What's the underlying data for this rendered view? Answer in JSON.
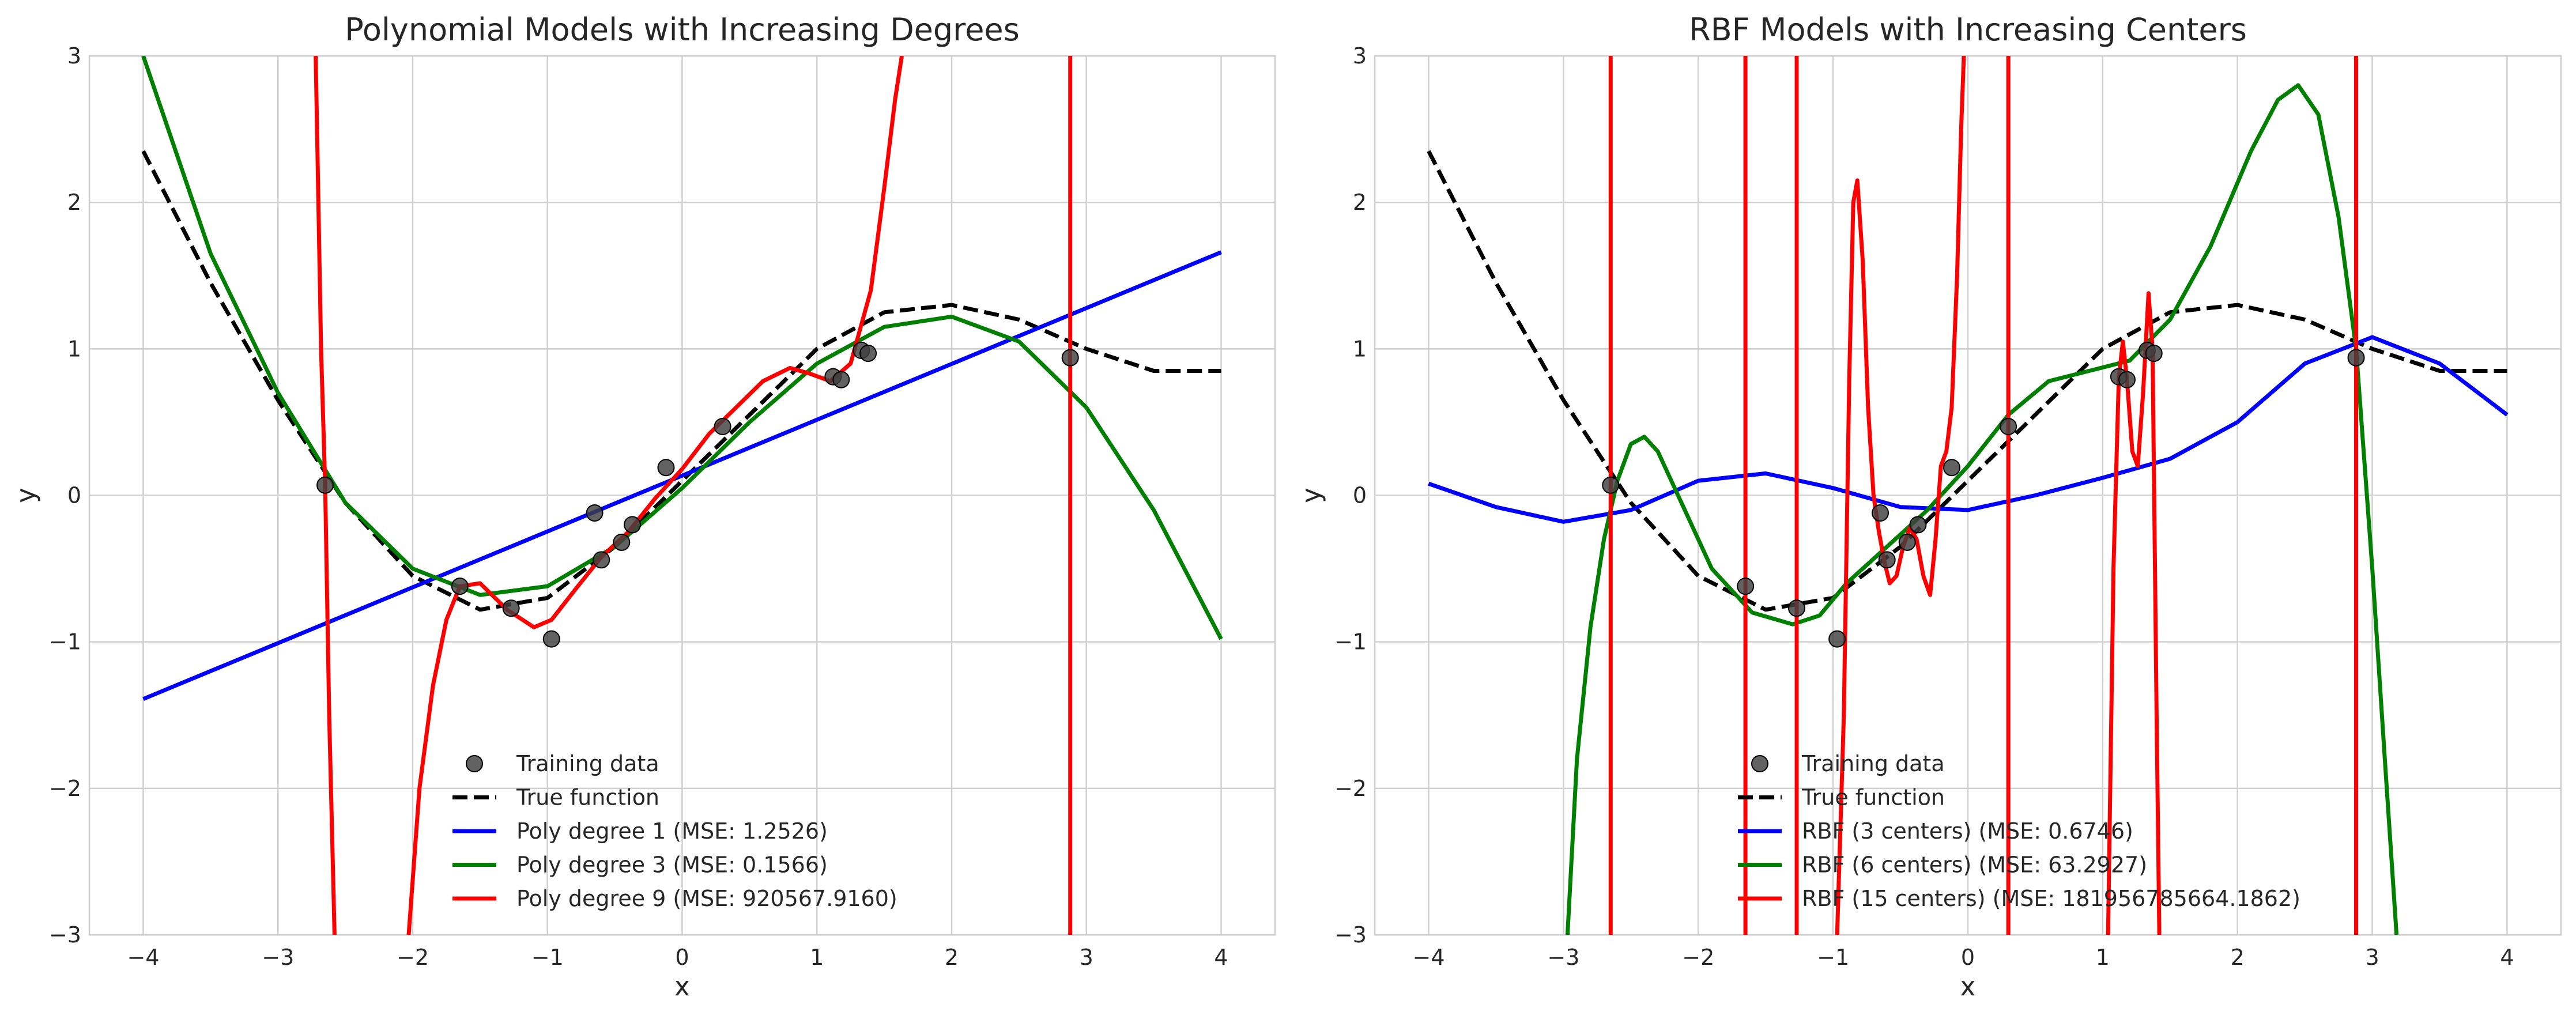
{
  "chart_data": [
    {
      "type": "line",
      "title": "Polynomial Models with Increasing Degrees",
      "xlabel": "x",
      "ylabel": "y",
      "xlim": [
        -4.4,
        4.4
      ],
      "ylim": [
        -3,
        3
      ],
      "xticks": [
        -4,
        -3,
        -2,
        -1,
        0,
        1,
        2,
        3,
        4
      ],
      "yticks": [
        -3,
        -2,
        -1,
        0,
        1,
        2,
        3
      ],
      "grid": true,
      "legend_position": "lower center",
      "training_data": {
        "name": "Training data",
        "color": "#404040",
        "x": [
          -2.65,
          -1.65,
          -1.27,
          -0.97,
          -0.65,
          -0.6,
          -0.45,
          -0.37,
          -0.12,
          0.3,
          1.12,
          1.18,
          1.33,
          1.38,
          2.88
        ],
        "y": [
          0.07,
          -0.62,
          -0.77,
          -0.98,
          -0.12,
          -0.44,
          -0.32,
          -0.2,
          0.19,
          0.47,
          0.81,
          0.79,
          0.99,
          0.97,
          0.94
        ]
      },
      "true_function": {
        "name": "True function",
        "color": "#000000",
        "style": "dashed",
        "x": [
          -4,
          -3.5,
          -3,
          -2.5,
          -2,
          -1.5,
          -1,
          -0.5,
          0,
          0.5,
          1,
          1.5,
          2,
          2.5,
          3,
          3.5,
          4
        ],
        "y": [
          2.35,
          1.45,
          0.65,
          -0.05,
          -0.55,
          -0.78,
          -0.7,
          -0.35,
          0.1,
          0.55,
          1.0,
          1.25,
          1.3,
          1.2,
          1.0,
          0.85,
          0.85
        ]
      },
      "series": [
        {
          "name": "Poly degree 1 (MSE: 1.2526)",
          "color": "#0000ff",
          "x": [
            -4,
            4
          ],
          "y": [
            -1.39,
            1.66
          ]
        },
        {
          "name": "Poly degree 3 (MSE: 0.1566)",
          "color": "#008000",
          "x": [
            -4,
            -3.5,
            -3,
            -2.5,
            -2,
            -1.5,
            -1,
            -0.5,
            0,
            0.5,
            1,
            1.5,
            2,
            2.5,
            3,
            3.5,
            4
          ],
          "y": [
            3.0,
            1.65,
            0.7,
            -0.05,
            -0.5,
            -0.68,
            -0.62,
            -0.35,
            0.05,
            0.5,
            0.9,
            1.15,
            1.22,
            1.05,
            0.6,
            -0.1,
            -0.98
          ]
        },
        {
          "name": "Poly degree 9 (MSE: 920567.9160)",
          "color": "#ff0000",
          "segments": [
            {
              "x": [
                -2.72,
                -2.68,
                -2.65,
                -2.62,
                -2.58
              ],
              "y": [
                3.0,
                1.0,
                0.07,
                -1.5,
                -3.0
              ]
            },
            {
              "x": [
                -2.03,
                -1.95,
                -1.85,
                -1.75,
                -1.65,
                -1.5,
                -1.3,
                -1.1,
                -0.97,
                -0.8,
                -0.6,
                -0.4,
                -0.2,
                0,
                0.2,
                0.4,
                0.6,
                0.8,
                0.95,
                1.1,
                1.25,
                1.4,
                1.5,
                1.58,
                1.63
              ],
              "y": [
                -3.0,
                -2.0,
                -1.3,
                -0.85,
                -0.62,
                -0.6,
                -0.78,
                -0.9,
                -0.85,
                -0.65,
                -0.42,
                -0.25,
                -0.02,
                0.18,
                0.42,
                0.6,
                0.78,
                0.87,
                0.83,
                0.78,
                0.9,
                1.4,
                2.1,
                2.7,
                3.0
              ]
            },
            {
              "x": [
                2.88,
                2.88
              ],
              "y": [
                3.0,
                -3.0
              ]
            }
          ]
        }
      ]
    },
    {
      "type": "line",
      "title": "RBF Models with Increasing Centers",
      "xlabel": "x",
      "ylabel": "y",
      "xlim": [
        -4.4,
        4.4
      ],
      "ylim": [
        -3,
        3
      ],
      "xticks": [
        -4,
        -3,
        -2,
        -1,
        0,
        1,
        2,
        3,
        4
      ],
      "yticks": [
        -3,
        -2,
        -1,
        0,
        1,
        2,
        3
      ],
      "grid": true,
      "legend_position": "lower center",
      "training_data": {
        "name": "Training data",
        "color": "#404040",
        "x": [
          -2.65,
          -1.65,
          -1.27,
          -0.97,
          -0.65,
          -0.6,
          -0.45,
          -0.37,
          -0.12,
          0.3,
          1.12,
          1.18,
          1.33,
          1.38,
          2.88
        ],
        "y": [
          0.07,
          -0.62,
          -0.77,
          -0.98,
          -0.12,
          -0.44,
          -0.32,
          -0.2,
          0.19,
          0.47,
          0.81,
          0.79,
          0.99,
          0.97,
          0.94
        ]
      },
      "true_function": {
        "name": "True function",
        "color": "#000000",
        "style": "dashed",
        "x": [
          -4,
          -3.5,
          -3,
          -2.5,
          -2,
          -1.5,
          -1,
          -0.5,
          0,
          0.5,
          1,
          1.5,
          2,
          2.5,
          3,
          3.5,
          4
        ],
        "y": [
          2.35,
          1.45,
          0.65,
          -0.05,
          -0.55,
          -0.78,
          -0.7,
          -0.35,
          0.1,
          0.55,
          1.0,
          1.25,
          1.3,
          1.2,
          1.0,
          0.85,
          0.85
        ]
      },
      "series": [
        {
          "name": "RBF (3 centers) (MSE: 0.6746)",
          "color": "#0000ff",
          "x": [
            -4,
            -3.5,
            -3,
            -2.5,
            -2,
            -1.5,
            -1,
            -0.5,
            0,
            0.5,
            1,
            1.5,
            2,
            2.5,
            3,
            3.5,
            4
          ],
          "y": [
            0.08,
            -0.08,
            -0.18,
            -0.1,
            0.1,
            0.15,
            0.05,
            -0.08,
            -0.1,
            0.0,
            0.12,
            0.25,
            0.5,
            0.9,
            1.08,
            0.9,
            0.55
          ]
        },
        {
          "name": "RBF (6 centers) (MSE: 63.2927)",
          "color": "#008000",
          "x": [
            -2.97,
            -2.9,
            -2.8,
            -2.7,
            -2.6,
            -2.5,
            -2.4,
            -2.3,
            -2.1,
            -1.9,
            -1.6,
            -1.3,
            -1.1,
            -0.9,
            -0.6,
            -0.3,
            0,
            0.3,
            0.6,
            0.9,
            1.2,
            1.5,
            1.8,
            2.1,
            2.3,
            2.45,
            2.6,
            2.75,
            2.88,
            3.0,
            3.1,
            3.18
          ],
          "y": [
            -3.0,
            -1.8,
            -0.9,
            -0.3,
            0.1,
            0.35,
            0.4,
            0.3,
            -0.1,
            -0.5,
            -0.8,
            -0.88,
            -0.82,
            -0.6,
            -0.35,
            -0.1,
            0.2,
            0.55,
            0.78,
            0.85,
            0.92,
            1.2,
            1.7,
            2.35,
            2.7,
            2.8,
            2.6,
            1.9,
            1.0,
            -0.5,
            -1.9,
            -3.0
          ]
        },
        {
          "name": "RBF (15 centers) (MSE: 181956785664.1862)",
          "color": "#ff0000",
          "segments": [
            {
              "x": [
                -2.65,
                -2.65
              ],
              "y": [
                3.0,
                -3.0
              ]
            },
            {
              "x": [
                -1.65,
                -1.65
              ],
              "y": [
                3.0,
                -3.0
              ]
            },
            {
              "x": [
                -1.27,
                -1.27
              ],
              "y": [
                3.0,
                -3.0
              ]
            },
            {
              "x": [
                -0.97,
                -0.92,
                -0.88,
                -0.85,
                -0.82,
                -0.78,
                -0.74,
                -0.7,
                -0.66,
                -0.62,
                -0.58,
                -0.53,
                -0.48,
                -0.43,
                -0.38,
                -0.33,
                -0.28,
                -0.24,
                -0.2,
                -0.16,
                -0.12,
                -0.08,
                -0.05,
                -0.03
              ],
              "y": [
                -3.0,
                -1.5,
                0.8,
                2.0,
                2.15,
                1.6,
                0.6,
                0.0,
                -0.25,
                -0.45,
                -0.6,
                -0.55,
                -0.35,
                -0.22,
                -0.3,
                -0.55,
                -0.68,
                -0.3,
                0.2,
                0.3,
                0.6,
                1.5,
                2.5,
                3.0
              ]
            },
            {
              "x": [
                0.3,
                0.3
              ],
              "y": [
                3.0,
                -3.0
              ]
            },
            {
              "x": [
                1.04,
                1.08,
                1.12,
                1.15,
                1.18,
                1.22,
                1.26,
                1.3,
                1.34,
                1.37,
                1.4,
                1.42
              ],
              "y": [
                -3.0,
                -0.5,
                0.81,
                1.05,
                0.79,
                0.3,
                0.2,
                0.7,
                1.38,
                1.0,
                -1.5,
                -3.0
              ]
            },
            {
              "x": [
                2.88,
                2.88
              ],
              "y": [
                3.0,
                -3.0
              ]
            }
          ]
        }
      ]
    }
  ]
}
